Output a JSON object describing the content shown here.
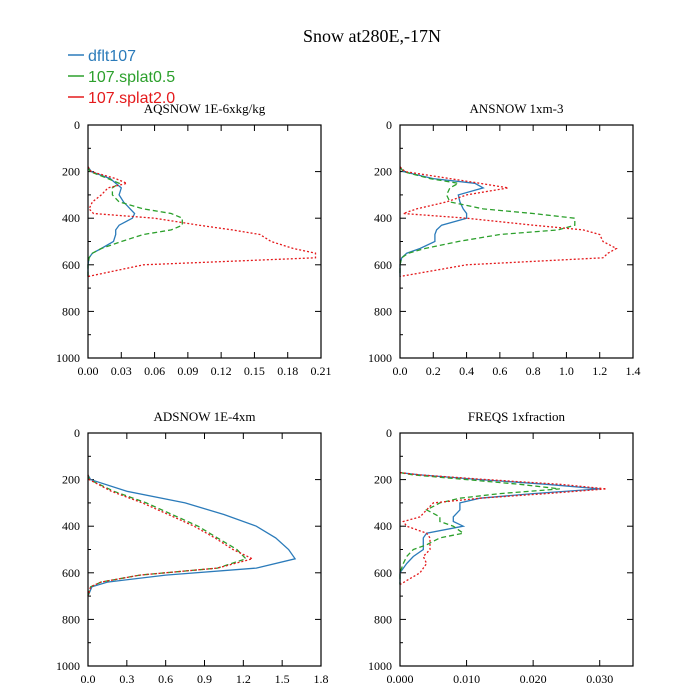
{
  "title": "Snow at280E,-17N",
  "legend": [
    {
      "name": "dflt107",
      "color": "#2b7bba",
      "dash": "solid"
    },
    {
      "name": "107.splat0.5",
      "color": "#2ca02c",
      "dash": "dashed"
    },
    {
      "name": "107.splat2.0",
      "color": "#e41a1c",
      "dash": "dotted"
    }
  ],
  "chart_data": [
    {
      "type": "line",
      "title": "AQSNOW  1E-6xkg/kg",
      "xlim": [
        0,
        0.21
      ],
      "ylim": [
        1000,
        0
      ],
      "xticks": [
        "0.00",
        "0.03",
        "0.06",
        "0.09",
        "0.12",
        "0.15",
        "0.18",
        "0.21"
      ],
      "yticks": [
        "0",
        "200",
        "400",
        "600",
        "800",
        "1000"
      ],
      "y": [
        180,
        200,
        230,
        250,
        270,
        300,
        330,
        360,
        380,
        400,
        430,
        450,
        470,
        500,
        530,
        550,
        570,
        600,
        650
      ],
      "series": [
        {
          "name": "dflt107",
          "x": [
            0,
            0.003,
            0.02,
            0.025,
            0.03,
            0.028,
            0.032,
            0.038,
            0.042,
            0.04,
            0.028,
            0.025,
            0.025,
            0.023,
            0.012,
            0.004,
            0.001,
            0,
            0
          ]
        },
        {
          "name": "107.splat0.5",
          "x": [
            0,
            0.002,
            0.018,
            0.028,
            0.022,
            0.022,
            0.028,
            0.05,
            0.075,
            0.085,
            0.085,
            0.075,
            0.05,
            0.03,
            0.012,
            0.004,
            0.001,
            0,
            0
          ]
        },
        {
          "name": "107.splat2.0",
          "x": [
            0,
            0.003,
            0.025,
            0.035,
            0.018,
            0.012,
            0.004,
            0.001,
            0.005,
            0.06,
            0.1,
            0.13,
            0.155,
            0.165,
            0.185,
            0.205,
            0.205,
            0.05,
            0
          ]
        }
      ]
    },
    {
      "type": "line",
      "title": "ANSNOW  1xm-3",
      "xlim": [
        0,
        1.4
      ],
      "ylim": [
        1000,
        0
      ],
      "xticks": [
        "0.0",
        "0.2",
        "0.4",
        "0.6",
        "0.8",
        "1.0",
        "1.2",
        "1.4"
      ],
      "yticks": [
        "0",
        "200",
        "400",
        "600",
        "800",
        "1000"
      ],
      "y": [
        180,
        200,
        230,
        250,
        270,
        300,
        330,
        360,
        380,
        400,
        430,
        450,
        470,
        500,
        530,
        550,
        570,
        600,
        650
      ],
      "series": [
        {
          "name": "dflt107",
          "x": [
            0,
            0.02,
            0.2,
            0.45,
            0.5,
            0.35,
            0.36,
            0.38,
            0.4,
            0.4,
            0.25,
            0.22,
            0.21,
            0.21,
            0.12,
            0.04,
            0.01,
            0,
            0
          ]
        },
        {
          "name": "107.splat0.5",
          "x": [
            0,
            0.02,
            0.18,
            0.35,
            0.3,
            0.28,
            0.3,
            0.5,
            0.8,
            1.05,
            1.05,
            0.95,
            0.6,
            0.35,
            0.15,
            0.05,
            0.01,
            0,
            0
          ]
        },
        {
          "name": "107.splat2.0",
          "x": [
            0,
            0.03,
            0.3,
            0.48,
            0.65,
            0.4,
            0.28,
            0.1,
            0.02,
            0.4,
            0.8,
            1.1,
            1.2,
            1.22,
            1.3,
            1.25,
            1.22,
            0.4,
            0
          ]
        }
      ]
    },
    {
      "type": "line",
      "title": "ADSNOW  1E-4xm",
      "xlim": [
        0,
        1.8
      ],
      "ylim": [
        1000,
        0
      ],
      "xticks": [
        "0.0",
        "0.3",
        "0.6",
        "0.9",
        "1.2",
        "1.5",
        "1.8"
      ],
      "yticks": [
        "0",
        "200",
        "400",
        "600",
        "800",
        "1000"
      ],
      "y": [
        180,
        200,
        250,
        300,
        350,
        400,
        450,
        500,
        540,
        580,
        610,
        640,
        660,
        700
      ],
      "series": [
        {
          "name": "dflt107",
          "x": [
            0,
            0.02,
            0.3,
            0.75,
            1.05,
            1.3,
            1.45,
            1.55,
            1.6,
            1.3,
            0.6,
            0.15,
            0.03,
            0
          ]
        },
        {
          "name": "107.splat0.5",
          "x": [
            0,
            0.01,
            0.2,
            0.45,
            0.65,
            0.85,
            1.0,
            1.15,
            1.22,
            1.0,
            0.4,
            0.1,
            0.02,
            0
          ]
        },
        {
          "name": "107.splat2.0",
          "x": [
            0,
            0.01,
            0.18,
            0.42,
            0.62,
            0.82,
            0.98,
            1.12,
            1.27,
            1.0,
            0.4,
            0.1,
            0.02,
            0
          ]
        }
      ]
    },
    {
      "type": "line",
      "title": "FREQS  1xfraction",
      "xlim": [
        0,
        0.035
      ],
      "ylim": [
        1000,
        0
      ],
      "xticks": [
        "0.000",
        "0.010",
        "0.020",
        "0.030"
      ],
      "yticks": [
        "0",
        "200",
        "400",
        "600",
        "800",
        "1000"
      ],
      "y": [
        170,
        180,
        200,
        220,
        240,
        260,
        280,
        300,
        330,
        360,
        380,
        400,
        430,
        450,
        480,
        500,
        530,
        560,
        600,
        650
      ],
      "series": [
        {
          "name": "dflt107",
          "x": [
            0,
            0.003,
            0.012,
            0.022,
            0.03,
            0.02,
            0.012,
            0.009,
            0.009,
            0.008,
            0.008,
            0.0095,
            0.004,
            0.0035,
            0.0035,
            0.0035,
            0.002,
            0.001,
            0,
            0
          ]
        },
        {
          "name": "107.splat0.5",
          "x": [
            0,
            0.002,
            0.01,
            0.018,
            0.024,
            0.015,
            0.009,
            0.006,
            0.004,
            0.006,
            0.006,
            0.008,
            0.0095,
            0.006,
            0.004,
            0.002,
            0.001,
            0.0005,
            0,
            0
          ]
        },
        {
          "name": "107.splat2.0",
          "x": [
            0,
            0.003,
            0.013,
            0.024,
            0.031,
            0.022,
            0.012,
            0.005,
            0.004,
            0.003,
            0.0005,
            0.001,
            0.004,
            0.0045,
            0.0045,
            0.0045,
            0.0035,
            0.004,
            0.003,
            0
          ]
        }
      ]
    }
  ]
}
